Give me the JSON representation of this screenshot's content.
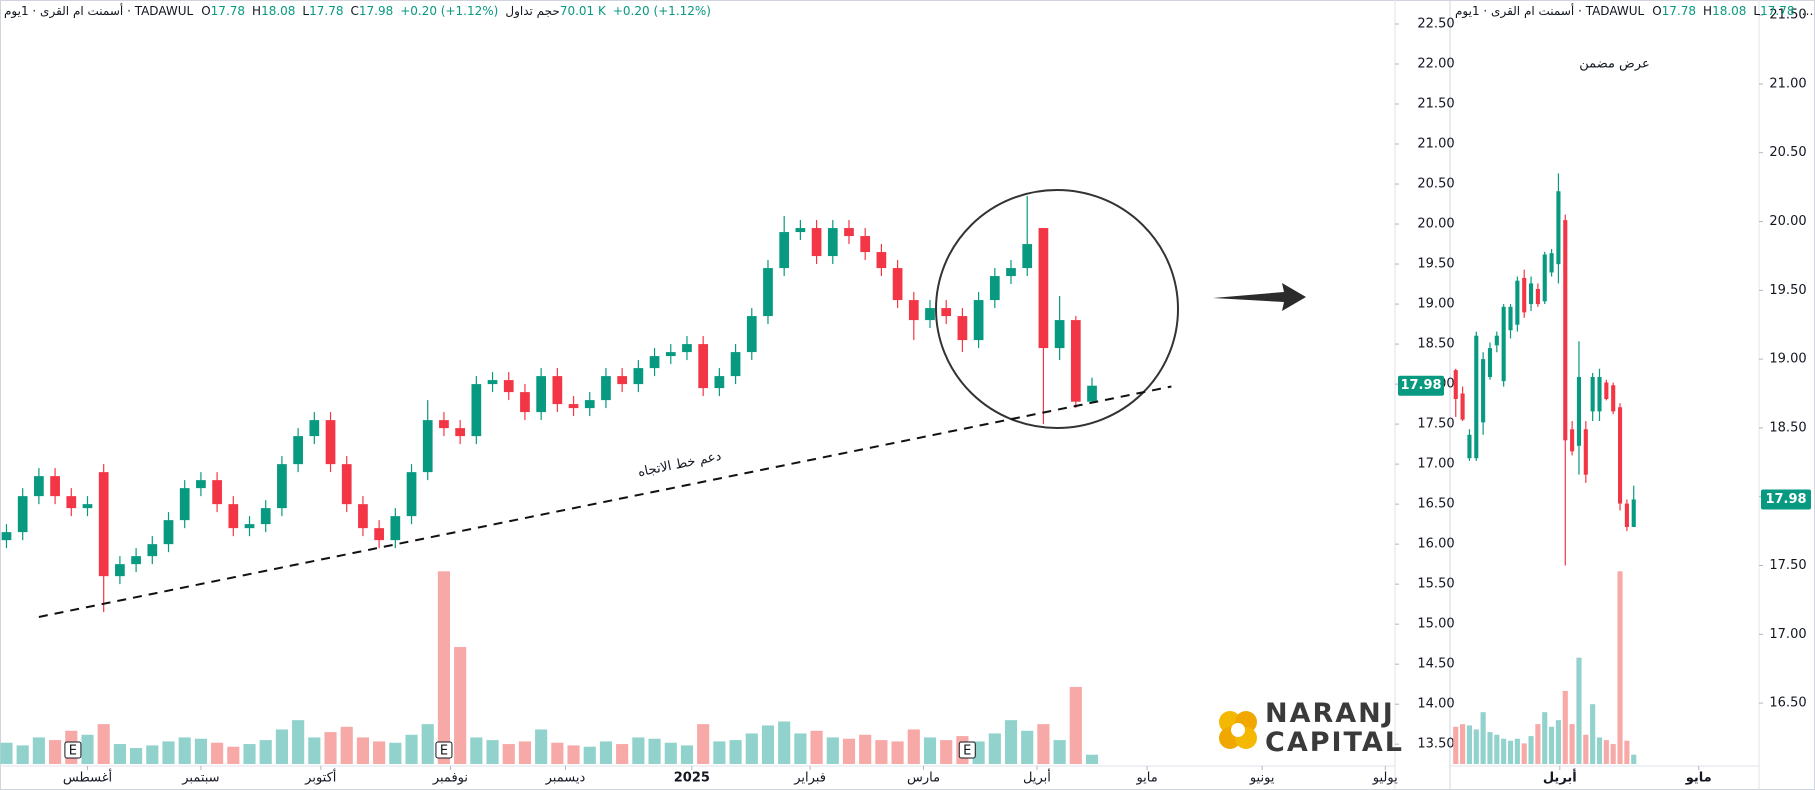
{
  "chart_data": [
    {
      "type": "candlestick",
      "header": {
        "symbol": "أسمنت ام القرى · 1يوم · TADAWUL",
        "open_label": "O",
        "high_label": "H",
        "low_label": "L",
        "close_label": "C",
        "change": "+0.20 (+1.12%)",
        "volume_label": "حجم تداول",
        "volume_text": "70.01 K"
      },
      "open": [
        16.05,
        16.15,
        16.6,
        16.85,
        16.6,
        16.45,
        16.9,
        15.6,
        15.75,
        15.85,
        16.0,
        16.3,
        16.7,
        16.8,
        16.5,
        16.2,
        16.25,
        16.45,
        17.0,
        17.35,
        17.55,
        17.0,
        16.5,
        16.2,
        16.05,
        16.35,
        16.9,
        17.55,
        17.45,
        17.35,
        18.0,
        18.05,
        17.9,
        17.65,
        18.1,
        17.75,
        17.7,
        17.8,
        18.1,
        18.0,
        18.2,
        18.35,
        18.4,
        18.5,
        17.95,
        18.1,
        18.4,
        18.85,
        19.45,
        19.9,
        19.95,
        19.6,
        19.95,
        19.85,
        19.65,
        19.45,
        19.05,
        18.8,
        18.95,
        18.85,
        18.55,
        19.05,
        19.35,
        19.45,
        19.95,
        18.45,
        18.8,
        17.78
      ],
      "high": [
        16.25,
        16.7,
        16.95,
        16.95,
        16.7,
        16.6,
        17.0,
        15.85,
        15.95,
        16.1,
        16.4,
        16.8,
        16.9,
        16.9,
        16.6,
        16.35,
        16.55,
        17.1,
        17.45,
        17.65,
        17.65,
        17.1,
        16.6,
        16.3,
        16.45,
        17.0,
        17.8,
        17.65,
        17.55,
        18.1,
        18.15,
        18.15,
        18.0,
        18.2,
        18.2,
        17.85,
        17.9,
        18.2,
        18.2,
        18.3,
        18.45,
        18.5,
        18.6,
        18.6,
        18.2,
        18.5,
        18.95,
        19.55,
        20.1,
        20.05,
        20.05,
        20.05,
        20.05,
        19.95,
        19.75,
        19.55,
        19.15,
        19.05,
        19.05,
        18.95,
        19.15,
        19.45,
        19.55,
        20.35,
        19.95,
        19.1,
        18.85,
        18.08
      ],
      "low": [
        15.95,
        16.05,
        16.5,
        16.5,
        16.35,
        16.35,
        15.15,
        15.5,
        15.65,
        15.75,
        15.9,
        16.2,
        16.6,
        16.4,
        16.1,
        16.1,
        16.15,
        16.35,
        16.9,
        17.25,
        16.9,
        16.4,
        16.1,
        15.95,
        15.95,
        16.25,
        16.8,
        17.35,
        17.25,
        17.25,
        17.9,
        17.8,
        17.55,
        17.55,
        17.65,
        17.6,
        17.6,
        17.7,
        17.9,
        17.9,
        18.1,
        18.25,
        18.3,
        17.85,
        17.85,
        18.0,
        18.3,
        18.75,
        19.35,
        19.8,
        19.5,
        19.5,
        19.75,
        19.55,
        19.35,
        18.95,
        18.55,
        18.7,
        18.75,
        18.4,
        18.45,
        18.95,
        19.25,
        19.35,
        17.5,
        18.3,
        17.7,
        17.78
      ],
      "close": [
        16.15,
        16.6,
        16.85,
        16.6,
        16.45,
        16.5,
        15.6,
        15.75,
        15.85,
        16.0,
        16.3,
        16.7,
        16.8,
        16.5,
        16.2,
        16.25,
        16.45,
        17.0,
        17.35,
        17.55,
        17.0,
        16.5,
        16.2,
        16.05,
        16.35,
        16.9,
        17.55,
        17.45,
        17.35,
        18.0,
        18.05,
        17.9,
        17.65,
        18.1,
        17.75,
        17.7,
        17.8,
        18.1,
        18.0,
        18.2,
        18.35,
        18.4,
        18.5,
        17.95,
        18.1,
        18.4,
        18.85,
        19.45,
        19.9,
        19.95,
        19.6,
        19.95,
        19.85,
        19.65,
        19.45,
        19.05,
        18.8,
        18.95,
        18.85,
        18.55,
        19.05,
        19.35,
        19.45,
        19.75,
        18.45,
        18.8,
        17.78,
        17.98
      ],
      "volume": [
        160,
        140,
        200,
        180,
        250,
        220,
        300,
        150,
        120,
        140,
        170,
        200,
        190,
        160,
        130,
        150,
        180,
        260,
        330,
        200,
        240,
        280,
        200,
        170,
        160,
        220,
        300,
        1450,
        880,
        200,
        180,
        150,
        170,
        260,
        160,
        140,
        130,
        170,
        150,
        200,
        190,
        160,
        140,
        300,
        170,
        180,
        230,
        290,
        320,
        230,
        250,
        200,
        190,
        220,
        180,
        170,
        260,
        200,
        180,
        210,
        170,
        230,
        330,
        250,
        300,
        180,
        580,
        70.01
      ],
      "up_color": "#089981",
      "down_color": "#f23645",
      "volume_up_color": "#92d2cc",
      "volume_down_color": "#f7a9a7",
      "xlim": [
        -0.4,
        85.7
      ],
      "xticks": [
        {
          "value": 5.0,
          "label": "أغسطس"
        },
        {
          "value": 12.0,
          "label": "سبتمبر"
        },
        {
          "value": 19.4,
          "label": "أكتوبر"
        },
        {
          "value": 27.4,
          "label": "نوفمبر"
        },
        {
          "value": 34.5,
          "label": "ديسمبر"
        },
        {
          "value": 42.3,
          "label": "2025"
        },
        {
          "value": 49.6,
          "label": "فبراير"
        },
        {
          "value": 56.6,
          "label": "مارس"
        },
        {
          "value": 63.6,
          "label": "أبريل"
        },
        {
          "value": 70.4,
          "label": "مايو"
        },
        {
          "value": 77.5,
          "label": "يونيو"
        },
        {
          "value": 85.1,
          "label": "يوليو"
        }
      ],
      "ylim": [
        13.24,
        22.8
      ],
      "yticks": [
        {
          "value": 13.5,
          "label": "13.50"
        },
        {
          "value": 14,
          "label": "14.00"
        },
        {
          "value": 14.5,
          "label": "14.50"
        },
        {
          "value": 15,
          "label": "15.00"
        },
        {
          "value": 15.5,
          "label": "15.50"
        },
        {
          "value": 16,
          "label": "16.00"
        },
        {
          "value": 16.5,
          "label": "16.50"
        },
        {
          "value": 17,
          "label": "17.00"
        },
        {
          "value": 17.5,
          "label": "17.50"
        },
        {
          "value": 18,
          "label": "18.00"
        },
        {
          "value": 18.5,
          "label": "18.50"
        },
        {
          "value": 19,
          "label": "19.00"
        },
        {
          "value": 19.5,
          "label": "19.50"
        },
        {
          "value": 20,
          "label": "20.00"
        },
        {
          "value": 20.5,
          "label": "20.50"
        },
        {
          "value": 21,
          "label": "21.00"
        },
        {
          "value": 21.5,
          "label": "21.50"
        },
        {
          "value": 22,
          "label": "22.00"
        },
        {
          "value": 22.5,
          "label": "22.50"
        }
      ],
      "volume_ylim": [
        0,
        1550
      ],
      "events": {
        "label": "E",
        "x": [
          4.1,
          27.0,
          59.3
        ]
      },
      "trendline": {
        "label": "دعم خط الاتجاه",
        "start": [
          2.0,
          15.09
        ],
        "end": [
          71.9,
          17.97
        ]
      }
    },
    {
      "type": "candlestick",
      "header": {
        "symbol": "أسمنت ام القرى · 1يوم · TADAWUL",
        "open_label": "O",
        "high_label": "H",
        "low_label": "L",
        "truncation": "…"
      },
      "annotation": "عرض مضمن",
      "open": [
        18.92,
        18.75,
        18.28,
        18.28,
        18.54,
        18.87,
        19.1,
        18.84,
        19.21,
        19.25,
        19.59,
        19.4,
        19.51,
        19.42,
        19.63,
        19.69,
        20.01,
        18.49,
        18.37,
        18.49,
        18.62,
        18.62,
        18.83,
        18.81,
        18.65,
        17.95,
        17.78
      ],
      "high": [
        18.93,
        18.8,
        18.49,
        19.2,
        19.05,
        19.12,
        19.2,
        19.4,
        19.4,
        19.6,
        19.65,
        19.6,
        19.55,
        19.78,
        19.8,
        20.35,
        20.05,
        18.55,
        19.13,
        18.55,
        18.9,
        18.93,
        18.85,
        18.83,
        18.68,
        17.98,
        18.08
      ],
      "low": [
        18.58,
        18.55,
        18.26,
        18.26,
        18.45,
        18.85,
        19.05,
        18.8,
        19.15,
        19.2,
        19.3,
        19.35,
        19.38,
        19.4,
        19.6,
        19.55,
        17.5,
        18.3,
        18.16,
        18.1,
        18.55,
        18.55,
        18.7,
        18.6,
        17.9,
        17.75,
        17.78
      ],
      "close": [
        18.71,
        18.56,
        18.45,
        19.17,
        19.0,
        19.08,
        19.17,
        19.38,
        19.38,
        19.57,
        19.34,
        19.55,
        19.4,
        19.76,
        19.77,
        20.22,
        18.41,
        18.33,
        18.87,
        18.16,
        18.87,
        18.87,
        18.71,
        18.62,
        17.95,
        17.78,
        17.98
      ],
      "volume": [
        280,
        300,
        290,
        260,
        390,
        240,
        220,
        190,
        175,
        190,
        155,
        210,
        300,
        390,
        280,
        330,
        550,
        300,
        800,
        220,
        450,
        200,
        180,
        150,
        1450,
        175,
        70.01
      ],
      "up_color": "#089981",
      "down_color": "#f23645",
      "volume_up_color": "#92d2cc",
      "volume_down_color": "#f7a9a7",
      "xlim": [
        -0.84,
        44.3
      ],
      "xticks": [
        {
          "value": 15.2,
          "label": "أبريل"
        },
        {
          "value": 35.5,
          "label": "مايو"
        }
      ],
      "ylim": [
        16.05,
        21.61
      ],
      "yticks": [
        {
          "value": 16.5,
          "label": "16.50"
        },
        {
          "value": 17,
          "label": "17.00"
        },
        {
          "value": 17.5,
          "label": "17.50"
        },
        {
          "value": 18,
          "label": "18.00"
        },
        {
          "value": 18.5,
          "label": "18.50"
        },
        {
          "value": 19,
          "label": "19.00"
        },
        {
          "value": 19.5,
          "label": "19.50"
        },
        {
          "value": 20,
          "label": "20.00"
        },
        {
          "value": 20.5,
          "label": "20.50"
        },
        {
          "value": 21,
          "label": "21.00"
        },
        {
          "value": 21.5,
          "label": "21.50"
        }
      ],
      "volume_ylim": [
        0,
        1550
      ]
    }
  ],
  "logo": {
    "line1": "NARANJ",
    "line2": "CAPITAL"
  }
}
